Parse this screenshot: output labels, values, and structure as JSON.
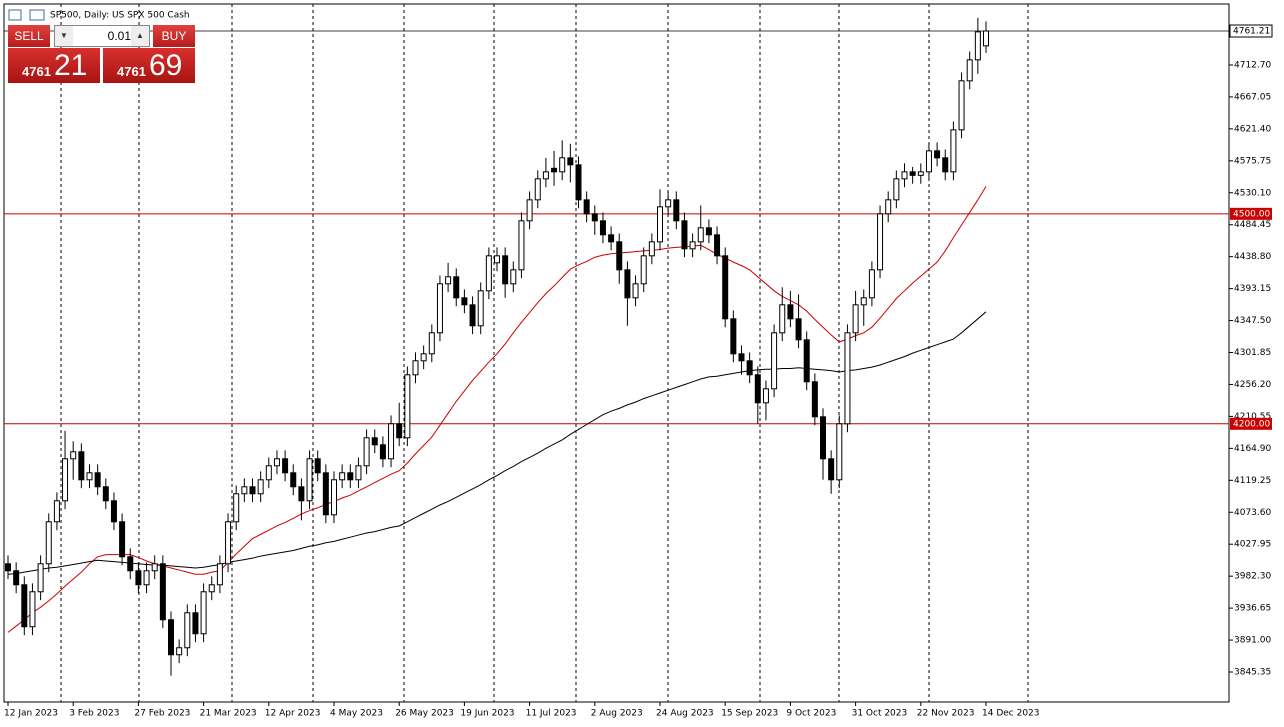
{
  "title": "SP500, Daily:  US SPX 500 Cash",
  "trade_panel": {
    "sell": "SELL",
    "buy": "BUY",
    "lot": "0.01",
    "bid": {
      "small": "4761",
      "big": "21"
    },
    "ask": {
      "small": "4761",
      "big": "69"
    }
  },
  "chart_data": {
    "type": "candlestick",
    "categories": [
      "12 Jan 2023",
      null,
      null,
      null,
      null,
      null,
      null,
      null,
      "3 Feb 2023",
      null,
      null,
      null,
      null,
      null,
      null,
      null,
      "27 Feb 2023",
      null,
      null,
      null,
      null,
      null,
      null,
      null,
      "21 Mar 2023",
      null,
      null,
      null,
      null,
      null,
      null,
      null,
      "12 Apr 2023",
      null,
      null,
      null,
      null,
      null,
      null,
      null,
      "4 May 2023",
      null,
      null,
      null,
      null,
      null,
      null,
      null,
      "26 May 2023",
      null,
      null,
      null,
      null,
      null,
      null,
      null,
      "19 Jun 2023",
      null,
      null,
      null,
      null,
      null,
      null,
      null,
      "11 Jul 2023",
      null,
      null,
      null,
      null,
      null,
      null,
      null,
      "2 Aug 2023",
      null,
      null,
      null,
      null,
      null,
      null,
      null,
      "24 Aug 2023",
      null,
      null,
      null,
      null,
      null,
      null,
      null,
      "15 Sep 2023",
      null,
      null,
      null,
      null,
      null,
      null,
      null,
      "9 Oct 2023",
      null,
      null,
      null,
      null,
      null,
      null,
      null,
      "31 Oct 2023",
      null,
      null,
      null,
      null,
      null,
      null,
      null,
      "22 Nov 2023",
      null,
      null,
      null,
      null,
      null,
      null,
      null,
      "14 Dec 2023"
    ],
    "ohlc": [
      [
        4000,
        4012,
        3978,
        3990
      ],
      [
        3990,
        4002,
        3958,
        3970
      ],
      [
        3970,
        3982,
        3898,
        3910
      ],
      [
        3910,
        3972,
        3898,
        3960
      ],
      [
        3960,
        4012,
        3948,
        4000
      ],
      [
        4000,
        4072,
        3988,
        4060
      ],
      [
        4060,
        4102,
        4048,
        4090
      ],
      [
        4090,
        4190,
        4078,
        4150
      ],
      [
        4150,
        4175,
        4120,
        4160
      ],
      [
        4160,
        4172,
        4108,
        4120
      ],
      [
        4120,
        4142,
        4108,
        4130
      ],
      [
        4130,
        4142,
        4098,
        4110
      ],
      [
        4110,
        4122,
        4078,
        4090
      ],
      [
        4090,
        4102,
        4048,
        4060
      ],
      [
        4060,
        4072,
        3998,
        4010
      ],
      [
        4010,
        4022,
        3978,
        3990
      ],
      [
        3990,
        4002,
        3958,
        3970
      ],
      [
        3970,
        4002,
        3958,
        3990
      ],
      [
        3990,
        4012,
        3978,
        4000
      ],
      [
        4000,
        4012,
        3908,
        3920
      ],
      [
        3920,
        3932,
        3840,
        3870
      ],
      [
        3870,
        3892,
        3858,
        3880
      ],
      [
        3880,
        3942,
        3868,
        3930
      ],
      [
        3930,
        3942,
        3888,
        3900
      ],
      [
        3900,
        3972,
        3888,
        3960
      ],
      [
        3960,
        3982,
        3948,
        3970
      ],
      [
        3970,
        4012,
        3958,
        4000
      ],
      [
        4000,
        4072,
        3988,
        4060
      ],
      [
        4060,
        4112,
        4048,
        4100
      ],
      [
        4100,
        4122,
        4088,
        4110
      ],
      [
        4110,
        4122,
        4088,
        4100
      ],
      [
        4100,
        4132,
        4088,
        4120
      ],
      [
        4120,
        4152,
        4108,
        4140
      ],
      [
        4140,
        4162,
        4128,
        4150
      ],
      [
        4150,
        4162,
        4118,
        4130
      ],
      [
        4130,
        4142,
        4098,
        4110
      ],
      [
        4110,
        4122,
        4062,
        4090
      ],
      [
        4090,
        4162,
        4078,
        4150
      ],
      [
        4150,
        4162,
        4118,
        4130
      ],
      [
        4130,
        4142,
        4058,
        4070
      ],
      [
        4070,
        4132,
        4058,
        4120
      ],
      [
        4120,
        4142,
        4108,
        4130
      ],
      [
        4130,
        4142,
        4108,
        4120
      ],
      [
        4120,
        4152,
        4108,
        4140
      ],
      [
        4140,
        4192,
        4128,
        4180
      ],
      [
        4180,
        4192,
        4158,
        4170
      ],
      [
        4170,
        4182,
        4138,
        4150
      ],
      [
        4150,
        4212,
        4138,
        4200
      ],
      [
        4200,
        4230,
        4168,
        4180
      ],
      [
        4180,
        4282,
        4168,
        4270
      ],
      [
        4270,
        4302,
        4258,
        4290
      ],
      [
        4290,
        4312,
        4278,
        4300
      ],
      [
        4300,
        4342,
        4288,
        4330
      ],
      [
        4330,
        4412,
        4318,
        4400
      ],
      [
        4400,
        4430,
        4388,
        4410
      ],
      [
        4410,
        4422,
        4368,
        4380
      ],
      [
        4380,
        4392,
        4358,
        4370
      ],
      [
        4370,
        4382,
        4328,
        4340
      ],
      [
        4340,
        4402,
        4328,
        4390
      ],
      [
        4390,
        4452,
        4378,
        4440
      ],
      [
        4430,
        4452,
        4418,
        4440
      ],
      [
        4440,
        4452,
        4380,
        4400
      ],
      [
        4400,
        4432,
        4388,
        4420
      ],
      [
        4420,
        4502,
        4408,
        4490
      ],
      [
        4490,
        4532,
        4478,
        4520
      ],
      [
        4520,
        4562,
        4508,
        4550
      ],
      [
        4550,
        4580,
        4538,
        4560
      ],
      [
        4565,
        4590,
        4540,
        4560
      ],
      [
        4560,
        4605,
        4548,
        4580
      ],
      [
        4580,
        4600,
        4545,
        4570
      ],
      [
        4570,
        4582,
        4508,
        4520
      ],
      [
        4520,
        4532,
        4488,
        4500
      ],
      [
        4500,
        4512,
        4470,
        4490
      ],
      [
        4490,
        4502,
        4458,
        4470
      ],
      [
        4470,
        4482,
        4448,
        4460
      ],
      [
        4460,
        4472,
        4400,
        4420
      ],
      [
        4420,
        4432,
        4340,
        4380
      ],
      [
        4380,
        4412,
        4368,
        4400
      ],
      [
        4400,
        4452,
        4388,
        4440
      ],
      [
        4440,
        4472,
        4428,
        4460
      ],
      [
        4460,
        4535,
        4448,
        4510
      ],
      [
        4510,
        4532,
        4498,
        4520
      ],
      [
        4520,
        4532,
        4478,
        4490
      ],
      [
        4490,
        4502,
        4438,
        4450
      ],
      [
        4450,
        4472,
        4438,
        4460
      ],
      [
        4460,
        4512,
        4448,
        4480
      ],
      [
        4480,
        4492,
        4458,
        4470
      ],
      [
        4470,
        4482,
        4428,
        4440
      ],
      [
        4440,
        4452,
        4338,
        4350
      ],
      [
        4350,
        4362,
        4288,
        4300
      ],
      [
        4300,
        4312,
        4270,
        4290
      ],
      [
        4290,
        4302,
        4258,
        4270
      ],
      [
        4270,
        4282,
        4200,
        4230
      ],
      [
        4230,
        4262,
        4205,
        4250
      ],
      [
        4250,
        4342,
        4238,
        4330
      ],
      [
        4330,
        4395,
        4318,
        4370
      ],
      [
        4370,
        4390,
        4338,
        4350
      ],
      [
        4350,
        4385,
        4308,
        4320
      ],
      [
        4320,
        4332,
        4248,
        4260
      ],
      [
        4260,
        4272,
        4198,
        4210
      ],
      [
        4210,
        4222,
        4120,
        4150
      ],
      [
        4150,
        4162,
        4100,
        4120
      ],
      [
        4120,
        4212,
        4108,
        4200
      ],
      [
        4200,
        4342,
        4188,
        4330
      ],
      [
        4330,
        4390,
        4318,
        4370
      ],
      [
        4370,
        4392,
        4340,
        4380
      ],
      [
        4380,
        4432,
        4368,
        4420
      ],
      [
        4420,
        4512,
        4408,
        4500
      ],
      [
        4500,
        4532,
        4488,
        4520
      ],
      [
        4520,
        4562,
        4508,
        4550
      ],
      [
        4550,
        4572,
        4538,
        4560
      ],
      [
        4560,
        4567,
        4543,
        4555
      ],
      [
        4555,
        4572,
        4543,
        4560
      ],
      [
        4560,
        4602,
        4548,
        4590
      ],
      [
        4590,
        4602,
        4568,
        4580
      ],
      [
        4580,
        4592,
        4548,
        4560
      ],
      [
        4560,
        4632,
        4548,
        4620
      ],
      [
        4620,
        4702,
        4608,
        4690
      ],
      [
        4690,
        4732,
        4678,
        4720
      ],
      [
        4720,
        4780,
        4700,
        4760
      ],
      [
        4740,
        4775,
        4730,
        4761.21
      ]
    ],
    "moving_averages": [
      {
        "color": "#cc0000",
        "values": [
          3902,
          3911,
          3920,
          3930,
          3938,
          3947,
          3957,
          3968,
          3978,
          3988,
          4000,
          4010,
          4013,
          4013,
          4013,
          4013,
          4009,
          4004,
          4000,
          3997,
          3994,
          3991,
          3988,
          3985,
          3985,
          3988,
          3990,
          4002,
          4014,
          4025,
          4036,
          4042,
          4048,
          4054,
          4059,
          4065,
          4071,
          4076,
          4080,
          4085,
          4089,
          4094,
          4098,
          4104,
          4110,
          4116,
          4122,
          4128,
          4133,
          4144,
          4157,
          4169,
          4181,
          4198,
          4215,
          4232,
          4247,
          4262,
          4275,
          4288,
          4300,
          4314,
          4330,
          4345,
          4359,
          4373,
          4386,
          4397,
          4409,
          4421,
          4427,
          4432,
          4438,
          4441,
          4443,
          4444,
          4445,
          4446,
          4447,
          4448,
          4449,
          4451,
          4452,
          4453,
          4454,
          4455,
          4449,
          4442,
          4437,
          4431,
          4426,
          4420,
          4410,
          4400,
          4390,
          4382,
          4376,
          4370,
          4361,
          4349,
          4338,
          4327,
          4317,
          4321,
          4326,
          4330,
          4338,
          4351,
          4365,
          4379,
          4390,
          4401,
          4411,
          4421,
          4431,
          4447,
          4466,
          4484,
          4502,
          4520,
          4539
        ]
      },
      {
        "color": "#000000",
        "values": [
          3985,
          3986,
          3988,
          3990,
          3992,
          3994,
          3995,
          3997,
          3999,
          4001,
          4003,
          4005,
          4004,
          4003,
          4002,
          4001,
          4000,
          3999,
          3998,
          3998,
          3997,
          3996,
          3995,
          3994,
          3995,
          3997,
          3999,
          4002,
          4004,
          4006,
          4008,
          4011,
          4013,
          4015,
          4017,
          4019,
          4022,
          4025,
          4027,
          4030,
          4032,
          4035,
          4038,
          4041,
          4044,
          4046,
          4049,
          4052,
          4054,
          4060,
          4066,
          4072,
          4078,
          4084,
          4089,
          4095,
          4101,
          4107,
          4113,
          4120,
          4126,
          4133,
          4139,
          4146,
          4152,
          4158,
          4165,
          4171,
          4177,
          4185,
          4192,
          4199,
          4206,
          4213,
          4218,
          4222,
          4227,
          4231,
          4236,
          4240,
          4244,
          4248,
          4252,
          4256,
          4260,
          4264,
          4267,
          4268,
          4270,
          4272,
          4274,
          4276,
          4277,
          4278,
          4278,
          4279,
          4279,
          4280,
          4279,
          4278,
          4277,
          4276,
          4274,
          4276,
          4277,
          4279,
          4281,
          4284,
          4288,
          4292,
          4296,
          4301,
          4305,
          4309,
          4313,
          4317,
          4321,
          4330,
          4340,
          4350,
          4360
        ]
      }
    ],
    "ylim": [
      3802.5,
      4799.8
    ],
    "yticks": [
      3845.35,
      {
        "value": 3891,
        "label": "3891.00"
      },
      3936.65,
      {
        "value": 3982.3,
        "label": "3982.30"
      },
      4027.95,
      {
        "value": 4073.6,
        "label": "4073.60"
      },
      4119.25,
      {
        "value": 4164.9,
        "label": "4164.90"
      },
      4210.55,
      {
        "value": 4256.2,
        "label": "4256.20"
      },
      4301.85,
      {
        "value": 4347.5,
        "label": "4347.50"
      },
      4393.15,
      {
        "value": 4438.8,
        "label": "4438.80"
      },
      4484.45,
      {
        "value": 4530.1,
        "label": "4530.10"
      },
      4575.75,
      {
        "value": 4621.4,
        "label": "4621.40"
      },
      4667.05,
      {
        "value": 4712.7,
        "label": "4712.70"
      }
    ],
    "levels": [
      {
        "value": 4500,
        "label": "4500.00",
        "color": "#cc0000"
      },
      {
        "value": 4200,
        "label": "4200.00",
        "color": "#cc0000"
      }
    ],
    "last_price": {
      "value": 4761.21,
      "label": "4761.21"
    },
    "bull_color": "#ffffff",
    "bear_color": "#000000"
  }
}
